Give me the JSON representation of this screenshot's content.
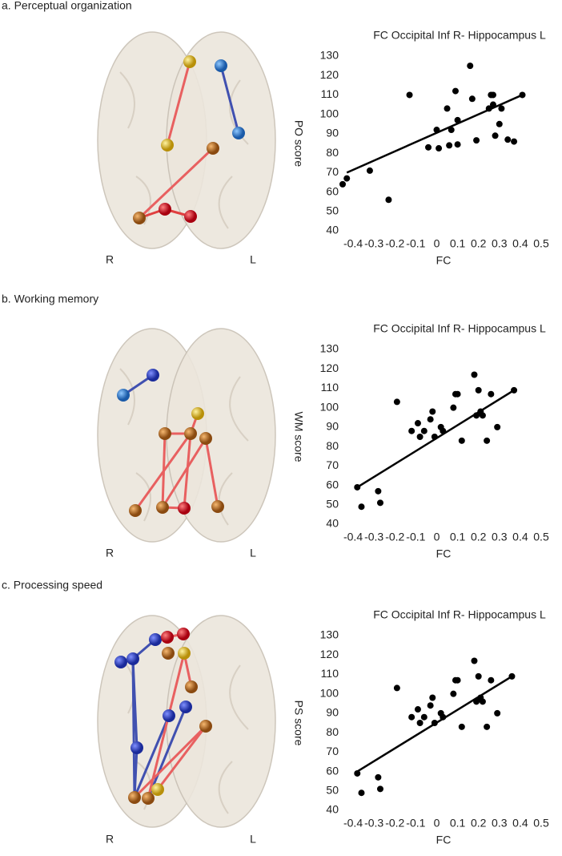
{
  "chart_data": [
    {
      "type": "scatter",
      "title": "FC Occipital Inf R- Hippocampus L",
      "x_label": "FC",
      "y_label": "PO score",
      "annotations": [
        "a. Perceptual organization",
        "R",
        "L"
      ],
      "xlim": [
        -0.45,
        0.5
      ],
      "ylim": [
        40,
        130
      ],
      "xticks": [
        -0.4,
        -0.3,
        -0.2,
        -0.1,
        0,
        0.1,
        0.2,
        0.3,
        0.4,
        0.5
      ],
      "yticks": [
        40,
        50,
        60,
        70,
        80,
        90,
        100,
        110,
        120,
        130
      ],
      "color": "#000000",
      "x": [
        -0.45,
        -0.43,
        -0.32,
        -0.23,
        -0.13,
        -0.04,
        0,
        0.01,
        0.05,
        0.06,
        0.07,
        0.09,
        0.1,
        0.1,
        0.16,
        0.17,
        0.19,
        0.25,
        0.26,
        0.27,
        0.27,
        0.28,
        0.3,
        0.31,
        0.34,
        0.37,
        0.41
      ],
      "y": [
        64,
        67,
        71,
        56,
        110,
        83,
        92,
        82.5,
        103,
        84,
        92,
        112,
        97,
        84.5,
        125,
        108,
        86.6,
        103,
        110,
        105,
        110,
        89,
        95,
        103,
        87,
        86,
        110
      ],
      "trendline": {
        "x": [
          -0.43,
          0.41
        ],
        "y": [
          70,
          110
        ]
      }
    },
    {
      "type": "scatter",
      "title": "FC Occipital Inf R- Hippocampus L",
      "x_label": "FC",
      "y_label": "WM score",
      "annotations": [
        "b. Working memory",
        "R",
        "L"
      ],
      "xlim": [
        -0.45,
        0.5
      ],
      "ylim": [
        40,
        130
      ],
      "xticks": [
        -0.4,
        -0.3,
        -0.2,
        -0.1,
        0,
        0.1,
        0.2,
        0.3,
        0.4,
        0.5
      ],
      "yticks": [
        40,
        50,
        60,
        70,
        80,
        90,
        100,
        110,
        120,
        130
      ],
      "color": "#000000",
      "x": [
        -0.38,
        -0.36,
        -0.28,
        -0.27,
        -0.19,
        -0.12,
        -0.09,
        -0.08,
        -0.06,
        -0.03,
        -0.02,
        -0.01,
        0.02,
        0.03,
        0.08,
        0.09,
        0.1,
        0.12,
        0.18,
        0.19,
        0.2,
        0.21,
        0.22,
        0.24,
        0.26,
        0.29,
        0.37
      ],
      "y": [
        59,
        49,
        57,
        51,
        103,
        88,
        92,
        85,
        88,
        94,
        98,
        85,
        90,
        88,
        100,
        107,
        107,
        83,
        117,
        96,
        109,
        98,
        96,
        83,
        107,
        90,
        109
      ],
      "trendline": {
        "x": [
          -0.38,
          0.37
        ],
        "y": [
          59,
          109
        ]
      }
    },
    {
      "type": "scatter",
      "title": "FC Occipital Inf R- Hippocampus L",
      "x_label": "FC",
      "y_label": "PS score",
      "annotations": [
        "c. Processing speed",
        "R",
        "L"
      ],
      "xlim": [
        -0.45,
        0.5
      ],
      "ylim": [
        40,
        130
      ],
      "xticks": [
        -0.4,
        -0.3,
        -0.2,
        -0.1,
        0,
        0.1,
        0.2,
        0.3,
        0.4,
        0.5
      ],
      "yticks": [
        40,
        50,
        60,
        70,
        80,
        90,
        100,
        110,
        120,
        130
      ],
      "color": "#000000",
      "x": [
        -0.38,
        -0.36,
        -0.28,
        -0.27,
        -0.19,
        -0.12,
        -0.09,
        -0.08,
        -0.06,
        -0.03,
        -0.02,
        -0.01,
        0.02,
        0.03,
        0.08,
        0.09,
        0.1,
        0.12,
        0.18,
        0.19,
        0.2,
        0.21,
        0.22,
        0.24,
        0.26,
        0.29,
        0.36
      ],
      "y": [
        59,
        49,
        57,
        51,
        103,
        88,
        92,
        85,
        88,
        94,
        98,
        85,
        90,
        88,
        100,
        107,
        107,
        83,
        117,
        96,
        109,
        98,
        96,
        83,
        107,
        90,
        109
      ],
      "trendline": {
        "x": [
          -0.38,
          0.36
        ],
        "y": [
          60,
          109
        ]
      }
    }
  ]
}
